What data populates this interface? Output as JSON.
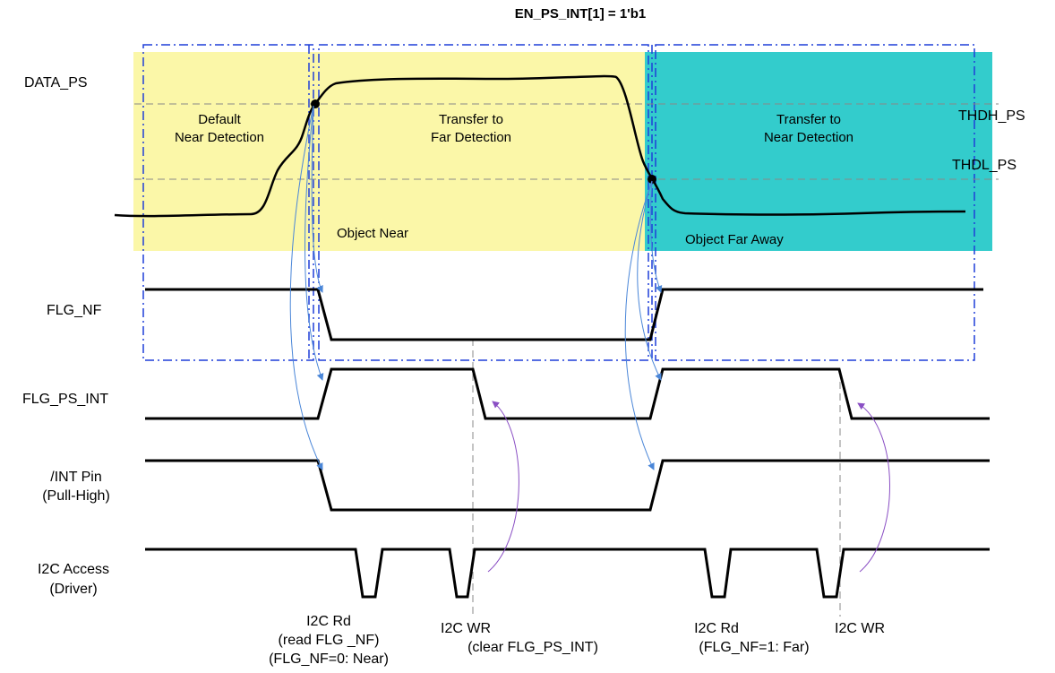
{
  "title": "EN_PS_INT[1] = 1'b1",
  "thresholds": {
    "high": "THDH_PS",
    "low": "THDL_PS"
  },
  "regions": {
    "default_near": [
      "Default",
      "Near Detection"
    ],
    "transfer_far": [
      "Transfer to",
      "Far Detection"
    ],
    "transfer_near": [
      "Transfer to",
      "Near Detection"
    ],
    "object_near": "Object Near",
    "object_far": "Object Far Away"
  },
  "signals": {
    "data_ps": "DATA_PS",
    "flg_nf": "FLG_NF",
    "flg_ps_int": "FLG_PS_INT",
    "int_pin": [
      "/INT Pin",
      "(Pull-High)"
    ],
    "i2c": [
      "I2C Access",
      "(Driver)"
    ]
  },
  "i2c_events": {
    "rd1": [
      "I2C Rd",
      "(read FLG _NF)",
      "(FLG_NF=0: Near)"
    ],
    "wr1": [
      "I2C WR",
      "(clear FLG_PS_INT)"
    ],
    "rd2": [
      "I2C Rd",
      "(FLG_NF=1: Far)"
    ],
    "wr2": [
      "I2C WR"
    ]
  },
  "colors": {
    "near_region": "#fbf7a8",
    "far_region": "#33cccc",
    "box_border": "#1f3fd8",
    "cause_arrow": "#4a86d8",
    "clear_arrow": "#8a4fc4"
  }
}
